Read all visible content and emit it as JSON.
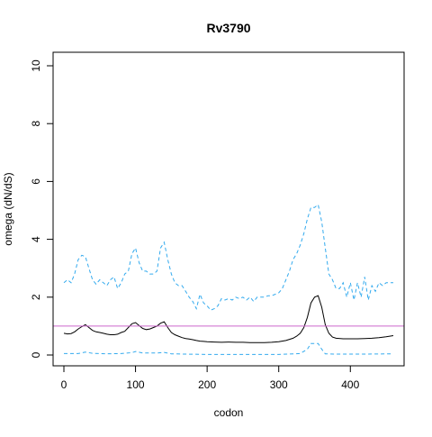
{
  "chart_data": {
    "type": "line",
    "title": "Rv3790",
    "xlabel": "codon",
    "ylabel": "omega (dN/dS)",
    "xlim": [
      0,
      460
    ],
    "ylim": [
      0,
      10
    ],
    "x_ticks": [
      0,
      100,
      200,
      300,
      400
    ],
    "y_ticks": [
      0,
      2,
      4,
      6,
      8,
      10
    ],
    "reference_line": {
      "y": 1,
      "color": "#cc66cc"
    },
    "grid": false,
    "series": [
      {
        "style": "dashed",
        "color": "#33aaee",
        "points": [
          [
            0,
            2.5
          ],
          [
            5,
            2.6
          ],
          [
            10,
            2.5
          ],
          [
            15,
            2.8
          ],
          [
            20,
            3.3
          ],
          [
            25,
            3.45
          ],
          [
            30,
            3.4
          ],
          [
            35,
            3.0
          ],
          [
            40,
            2.6
          ],
          [
            45,
            2.45
          ],
          [
            50,
            2.6
          ],
          [
            55,
            2.5
          ],
          [
            60,
            2.4
          ],
          [
            65,
            2.6
          ],
          [
            70,
            2.7
          ],
          [
            75,
            2.3
          ],
          [
            80,
            2.5
          ],
          [
            85,
            2.8
          ],
          [
            90,
            2.9
          ],
          [
            95,
            3.5
          ],
          [
            100,
            3.7
          ],
          [
            105,
            3.2
          ],
          [
            110,
            2.9
          ],
          [
            115,
            2.9
          ],
          [
            120,
            2.8
          ],
          [
            125,
            2.8
          ],
          [
            130,
            2.9
          ],
          [
            135,
            3.7
          ],
          [
            140,
            3.9
          ],
          [
            145,
            3.3
          ],
          [
            150,
            2.8
          ],
          [
            155,
            2.5
          ],
          [
            160,
            2.4
          ],
          [
            165,
            2.4
          ],
          [
            170,
            2.2
          ],
          [
            175,
            2.0
          ],
          [
            180,
            1.85
          ],
          [
            185,
            1.6
          ],
          [
            190,
            2.1
          ],
          [
            195,
            1.8
          ],
          [
            200,
            1.7
          ],
          [
            205,
            1.55
          ],
          [
            210,
            1.6
          ],
          [
            215,
            1.7
          ],
          [
            220,
            1.95
          ],
          [
            225,
            1.9
          ],
          [
            230,
            1.95
          ],
          [
            235,
            1.9
          ],
          [
            240,
            2.0
          ],
          [
            245,
            1.95
          ],
          [
            250,
            2.0
          ],
          [
            255,
            1.9
          ],
          [
            260,
            2.0
          ],
          [
            265,
            1.85
          ],
          [
            270,
            2.0
          ],
          [
            275,
            2.0
          ],
          [
            280,
            2.0
          ],
          [
            285,
            2.05
          ],
          [
            290,
            2.05
          ],
          [
            295,
            2.1
          ],
          [
            300,
            2.15
          ],
          [
            305,
            2.3
          ],
          [
            310,
            2.6
          ],
          [
            315,
            2.9
          ],
          [
            320,
            3.3
          ],
          [
            325,
            3.5
          ],
          [
            330,
            3.8
          ],
          [
            335,
            4.2
          ],
          [
            340,
            4.7
          ],
          [
            345,
            5.1
          ],
          [
            350,
            5.1
          ],
          [
            355,
            5.2
          ],
          [
            360,
            4.6
          ],
          [
            365,
            3.7
          ],
          [
            370,
            2.8
          ],
          [
            375,
            2.6
          ],
          [
            380,
            2.3
          ],
          [
            385,
            2.3
          ],
          [
            390,
            2.5
          ],
          [
            395,
            2.0
          ],
          [
            400,
            2.5
          ],
          [
            405,
            1.9
          ],
          [
            410,
            2.5
          ],
          [
            415,
            2.0
          ],
          [
            420,
            2.7
          ],
          [
            425,
            1.9
          ],
          [
            430,
            2.4
          ],
          [
            435,
            2.2
          ],
          [
            440,
            2.5
          ],
          [
            445,
            2.4
          ],
          [
            450,
            2.5
          ],
          [
            455,
            2.5
          ],
          [
            460,
            2.5
          ]
        ]
      },
      {
        "style": "solid",
        "color": "#000000",
        "points": [
          [
            0,
            0.75
          ],
          [
            5,
            0.73
          ],
          [
            10,
            0.74
          ],
          [
            15,
            0.8
          ],
          [
            20,
            0.9
          ],
          [
            25,
            0.98
          ],
          [
            30,
            1.05
          ],
          [
            35,
            0.95
          ],
          [
            40,
            0.85
          ],
          [
            45,
            0.8
          ],
          [
            50,
            0.78
          ],
          [
            55,
            0.75
          ],
          [
            60,
            0.72
          ],
          [
            65,
            0.7
          ],
          [
            70,
            0.7
          ],
          [
            75,
            0.72
          ],
          [
            80,
            0.78
          ],
          [
            85,
            0.82
          ],
          [
            90,
            0.95
          ],
          [
            95,
            1.08
          ],
          [
            100,
            1.12
          ],
          [
            105,
            1.02
          ],
          [
            110,
            0.92
          ],
          [
            115,
            0.88
          ],
          [
            120,
            0.9
          ],
          [
            125,
            0.95
          ],
          [
            130,
            1.0
          ],
          [
            135,
            1.1
          ],
          [
            140,
            1.15
          ],
          [
            145,
            0.95
          ],
          [
            150,
            0.78
          ],
          [
            155,
            0.7
          ],
          [
            160,
            0.65
          ],
          [
            165,
            0.6
          ],
          [
            170,
            0.57
          ],
          [
            175,
            0.55
          ],
          [
            180,
            0.53
          ],
          [
            185,
            0.5
          ],
          [
            190,
            0.48
          ],
          [
            195,
            0.47
          ],
          [
            200,
            0.46
          ],
          [
            210,
            0.45
          ],
          [
            220,
            0.44
          ],
          [
            230,
            0.45
          ],
          [
            240,
            0.44
          ],
          [
            250,
            0.44
          ],
          [
            260,
            0.43
          ],
          [
            270,
            0.43
          ],
          [
            280,
            0.43
          ],
          [
            290,
            0.44
          ],
          [
            300,
            0.46
          ],
          [
            310,
            0.5
          ],
          [
            320,
            0.58
          ],
          [
            325,
            0.65
          ],
          [
            330,
            0.75
          ],
          [
            335,
            0.95
          ],
          [
            340,
            1.3
          ],
          [
            345,
            1.8
          ],
          [
            350,
            2.0
          ],
          [
            355,
            2.05
          ],
          [
            360,
            1.65
          ],
          [
            365,
            1.05
          ],
          [
            370,
            0.75
          ],
          [
            375,
            0.62
          ],
          [
            380,
            0.58
          ],
          [
            390,
            0.56
          ],
          [
            400,
            0.56
          ],
          [
            410,
            0.56
          ],
          [
            420,
            0.57
          ],
          [
            430,
            0.58
          ],
          [
            440,
            0.6
          ],
          [
            450,
            0.63
          ],
          [
            460,
            0.67
          ]
        ]
      },
      {
        "style": "dashed",
        "color": "#33aaee",
        "points": [
          [
            0,
            0.05
          ],
          [
            20,
            0.05
          ],
          [
            30,
            0.1
          ],
          [
            40,
            0.06
          ],
          [
            60,
            0.04
          ],
          [
            80,
            0.05
          ],
          [
            95,
            0.08
          ],
          [
            100,
            0.12
          ],
          [
            110,
            0.07
          ],
          [
            130,
            0.07
          ],
          [
            140,
            0.09
          ],
          [
            150,
            0.04
          ],
          [
            170,
            0.03
          ],
          [
            200,
            0.02
          ],
          [
            250,
            0.02
          ],
          [
            300,
            0.02
          ],
          [
            330,
            0.05
          ],
          [
            340,
            0.2
          ],
          [
            345,
            0.4
          ],
          [
            355,
            0.4
          ],
          [
            360,
            0.2
          ],
          [
            365,
            0.04
          ],
          [
            380,
            0.03
          ],
          [
            420,
            0.03
          ],
          [
            460,
            0.04
          ]
        ]
      }
    ]
  }
}
